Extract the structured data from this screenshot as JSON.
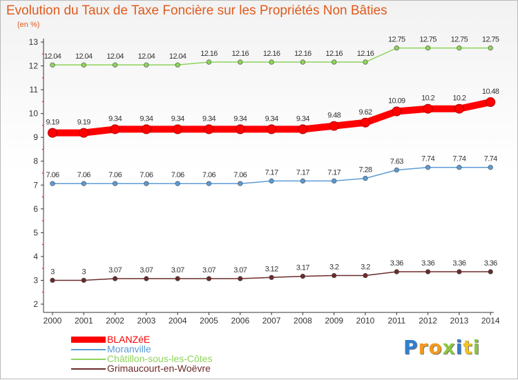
{
  "chart_data": {
    "type": "line",
    "title": "Evolution du Taux de Taxe Foncière sur les Propriétés Non Bâties",
    "subtitle": "(en %)",
    "xlabel": "",
    "ylabel": "",
    "ylim": [
      2,
      13
    ],
    "yticks": [
      2,
      3,
      4,
      5,
      6,
      7,
      8,
      9,
      10,
      11,
      12,
      13
    ],
    "grid": false,
    "legend_position": "bottom-left",
    "categories": [
      "2000",
      "2001",
      "2002",
      "2003",
      "2004",
      "2005",
      "2006",
      "2007",
      "2008",
      "2009",
      "2010",
      "2011",
      "2012",
      "2013",
      "2014"
    ],
    "series": [
      {
        "name": "BLANZéE",
        "color": "#ff0000",
        "emphasis": true,
        "values": [
          9.19,
          9.19,
          9.34,
          9.34,
          9.34,
          9.34,
          9.34,
          9.34,
          9.34,
          9.48,
          9.62,
          10.09,
          10.2,
          10.2,
          10.48
        ],
        "labels": [
          "9.19",
          "9.19",
          "9.34",
          "9.34",
          "9.34",
          "9.34",
          "9.34",
          "9.34",
          "9.34",
          "9.48",
          "9.62",
          "10.09",
          "10.2",
          "10.2",
          "10.48"
        ]
      },
      {
        "name": "Moranville",
        "color": "#5b9bd5",
        "emphasis": false,
        "values": [
          7.06,
          7.06,
          7.06,
          7.06,
          7.06,
          7.06,
          7.06,
          7.17,
          7.17,
          7.17,
          7.28,
          7.63,
          7.74,
          7.74,
          7.74
        ],
        "labels": [
          "7.06",
          "7.06",
          "7.06",
          "7.06",
          "7.06",
          "7.06",
          "7.06",
          "7.17",
          "7.17",
          "7.17",
          "7.28",
          "7.63",
          "7.74",
          "7.74",
          "7.74"
        ]
      },
      {
        "name": "Châtillon-sous-les-Côtes",
        "color": "#8ed45a",
        "emphasis": false,
        "values": [
          12.04,
          12.04,
          12.04,
          12.04,
          12.04,
          12.16,
          12.16,
          12.16,
          12.16,
          12.16,
          12.16,
          12.75,
          12.75,
          12.75,
          12.75
        ],
        "labels": [
          "12.04",
          "12.04",
          "12.04",
          "12.04",
          "12.04",
          "12.16",
          "12.16",
          "12.16",
          "12.16",
          "12.16",
          "12.16",
          "12.75",
          "12.75",
          "12.75",
          "12.75"
        ]
      },
      {
        "name": "Grimaucourt-en-Woëvre",
        "color": "#6b2a2a",
        "emphasis": false,
        "values": [
          3,
          3,
          3.07,
          3.07,
          3.07,
          3.07,
          3.07,
          3.12,
          3.17,
          3.2,
          3.2,
          3.36,
          3.36,
          3.36,
          3.36
        ],
        "labels": [
          "3",
          "3",
          "3.07",
          "3.07",
          "3.07",
          "3.07",
          "3.07",
          "3.12",
          "3.17",
          "3.2",
          "3.2",
          "3.36",
          "3.36",
          "3.36",
          "3.36"
        ]
      }
    ]
  },
  "logo": {
    "letters": [
      "P",
      "r",
      "o",
      "x",
      "i",
      "t",
      "i"
    ],
    "colors": [
      "#2f7fd0",
      "#f29a1d",
      "#f29a1d",
      "#8cc63f",
      "#2f7fd0",
      "#f2c21d",
      "#8cc63f"
    ]
  },
  "colors": {
    "title": "#e05a1b",
    "axis": "#333333",
    "tick_red": "#e00000"
  }
}
